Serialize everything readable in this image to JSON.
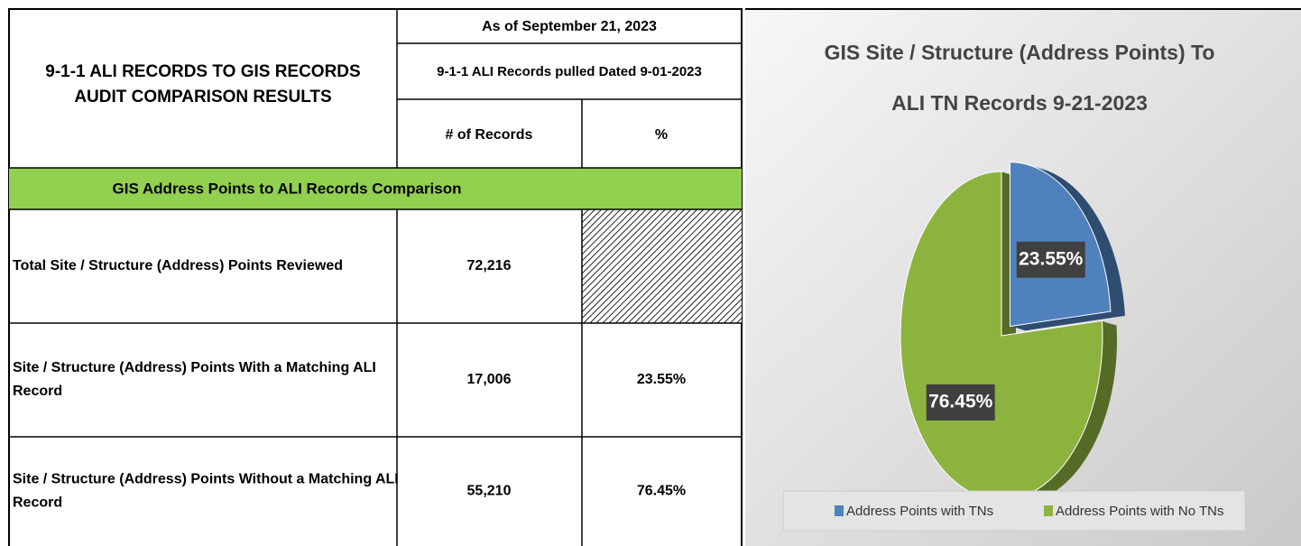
{
  "table": {
    "title_lines": [
      "9-1-1 ALI RECORDS TO GIS RECORDS",
      "AUDIT COMPARISON RESULTS"
    ],
    "as_of": "As of September 21, 2023",
    "pulled": "9-1-1 ALI Records pulled Dated 9-01-2023",
    "columns": [
      "# of Records",
      "%"
    ],
    "section": "GIS Address Points to ALI Records Comparison",
    "rows": [
      [
        [
          "Total Site / Structure (Address) Points Reviewed"
        ],
        "72,216",
        null
      ],
      [
        [
          "Site / Structure (Address) Points With a Matching ALI",
          "Record"
        ],
        "17,006",
        "23.55%"
      ],
      [
        [
          "Site / Structure (Address) Points  Without a Matching ALI",
          "Record"
        ],
        "55,210",
        "76.45%"
      ]
    ]
  },
  "chart_data": {
    "type": "pie",
    "title_lines": [
      "GIS Site / Structure (Address Points) To",
      "ALI TN Records 9-21-2023"
    ],
    "categories": [
      "Address Points with TNs",
      "Address Points with No TNs"
    ],
    "values": [
      23.55,
      76.45
    ],
    "value_labels": [
      "23.55%",
      "76.45%"
    ],
    "colors": [
      "#4f81bd",
      "#8db33f"
    ]
  }
}
